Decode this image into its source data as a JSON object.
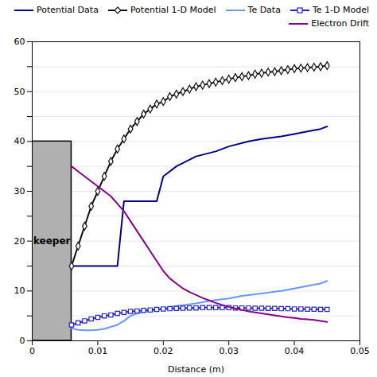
{
  "chart_data": {
    "type": "line",
    "xlabel": "Distance (m)",
    "xlim": [
      0,
      0.05
    ],
    "ylim": [
      0,
      60
    ],
    "xticks": [
      0,
      0.01,
      0.02,
      0.03,
      0.04,
      0.05
    ],
    "yticks": [
      0,
      {
        "value": 5,
        "label": ""
      },
      10,
      {
        "value": 15,
        "label": ""
      },
      20,
      {
        "value": 25,
        "label": ""
      },
      30,
      {
        "value": 35,
        "label": ""
      },
      40,
      {
        "value": 45,
        "label": ""
      },
      50,
      {
        "value": 55,
        "label": ""
      },
      60
    ],
    "grid": "y",
    "legend": "upper right",
    "shapes": [
      {
        "type": "rect",
        "label": "keeper",
        "x0": 0.0,
        "x1": 0.006,
        "y0": 0.0,
        "y1": 40.0,
        "color": "#b0b0b0",
        "edge_color": "#000000"
      }
    ],
    "series": [
      {
        "name": "Potential Data",
        "color": "#00008B",
        "x": [
          0.006,
          0.007,
          0.008,
          0.009,
          0.01,
          0.011,
          0.012,
          0.013,
          0.014,
          0.015,
          0.016,
          0.017,
          0.018,
          0.019,
          0.02,
          0.022,
          0.025,
          0.028,
          0.03,
          0.033,
          0.035,
          0.038,
          0.04,
          0.042,
          0.044,
          0.045
        ],
        "values": [
          15,
          15,
          15,
          15,
          15,
          15,
          15,
          15,
          28,
          28,
          28,
          28,
          28,
          28,
          33,
          35,
          37,
          38,
          39,
          40,
          40.5,
          41,
          41.5,
          42,
          42.5,
          43
        ]
      },
      {
        "name": "Potential 1-D Model",
        "color": "#111111",
        "marker": "diamond",
        "x": [
          0.006,
          0.007,
          0.008,
          0.009,
          0.01,
          0.011,
          0.012,
          0.013,
          0.014,
          0.015,
          0.016,
          0.017,
          0.018,
          0.019,
          0.02,
          0.021,
          0.022,
          0.023,
          0.024,
          0.025,
          0.026,
          0.027,
          0.028,
          0.029,
          0.03,
          0.031,
          0.032,
          0.033,
          0.034,
          0.035,
          0.036,
          0.037,
          0.038,
          0.039,
          0.04,
          0.041,
          0.042,
          0.043,
          0.044,
          0.045
        ],
        "values": [
          15,
          19,
          23,
          27,
          30,
          33,
          36,
          38.5,
          40.5,
          42.5,
          44,
          45.5,
          46.5,
          47.5,
          48,
          49,
          49.5,
          50,
          50.5,
          51,
          51.3,
          51.6,
          51.9,
          52.2,
          52.5,
          52.8,
          53,
          53.2,
          53.5,
          53.7,
          53.9,
          54,
          54.2,
          54.4,
          54.6,
          54.7,
          54.8,
          54.9,
          55,
          55.2
        ]
      },
      {
        "name": "Te Data",
        "color": "#6699FF",
        "x": [
          0.006,
          0.007,
          0.008,
          0.009,
          0.01,
          0.011,
          0.012,
          0.013,
          0.014,
          0.015,
          0.016,
          0.017,
          0.018,
          0.019,
          0.02,
          0.022,
          0.025,
          0.027,
          0.03,
          0.032,
          0.035,
          0.038,
          0.04,
          0.042,
          0.044,
          0.045
        ],
        "values": [
          2.5,
          2.2,
          2.1,
          2.1,
          2.2,
          2.4,
          2.8,
          3.2,
          4.0,
          5.0,
          5.5,
          5.8,
          6.0,
          6.2,
          6.5,
          7.0,
          7.5,
          8.0,
          8.5,
          9.0,
          9.5,
          10.0,
          10.5,
          11.0,
          11.5,
          12.0
        ]
      },
      {
        "name": "Te 1-D Model",
        "color": "#2222CC",
        "marker": "square",
        "x": [
          0.006,
          0.007,
          0.008,
          0.009,
          0.01,
          0.011,
          0.012,
          0.013,
          0.014,
          0.015,
          0.016,
          0.017,
          0.018,
          0.019,
          0.02,
          0.021,
          0.022,
          0.023,
          0.024,
          0.025,
          0.026,
          0.027,
          0.028,
          0.029,
          0.03,
          0.031,
          0.032,
          0.033,
          0.034,
          0.035,
          0.036,
          0.037,
          0.038,
          0.039,
          0.04,
          0.041,
          0.042,
          0.043,
          0.044,
          0.045
        ],
        "values": [
          3.2,
          3.6,
          4.0,
          4.4,
          4.7,
          5.0,
          5.2,
          5.5,
          5.7,
          5.9,
          6.0,
          6.1,
          6.2,
          6.3,
          6.4,
          6.45,
          6.5,
          6.55,
          6.6,
          6.6,
          6.65,
          6.65,
          6.65,
          6.65,
          6.65,
          6.6,
          6.6,
          6.6,
          6.55,
          6.55,
          6.5,
          6.5,
          6.45,
          6.45,
          6.4,
          6.4,
          6.35,
          6.35,
          6.3,
          6.3
        ]
      },
      {
        "name": "Electron Drift",
        "color": "#880088",
        "x": [
          0.006,
          0.007,
          0.008,
          0.009,
          0.01,
          0.011,
          0.012,
          0.013,
          0.014,
          0.015,
          0.016,
          0.017,
          0.018,
          0.019,
          0.02,
          0.021,
          0.022,
          0.023,
          0.024,
          0.025,
          0.026,
          0.027,
          0.028,
          0.029,
          0.03,
          0.031,
          0.032,
          0.033,
          0.034,
          0.035,
          0.036,
          0.037,
          0.038,
          0.039,
          0.04,
          0.041,
          0.042,
          0.043,
          0.044,
          0.045
        ],
        "values": [
          35,
          34,
          33,
          32,
          31,
          30,
          29,
          27.5,
          26,
          24,
          22,
          20,
          18,
          16,
          14,
          12.5,
          11.5,
          10.5,
          9.8,
          9.2,
          8.6,
          8.1,
          7.6,
          7.2,
          6.8,
          6.5,
          6.2,
          5.9,
          5.7,
          5.5,
          5.3,
          5.1,
          4.9,
          4.7,
          4.6,
          4.4,
          4.3,
          4.2,
          4.0,
          3.8
        ]
      }
    ]
  }
}
